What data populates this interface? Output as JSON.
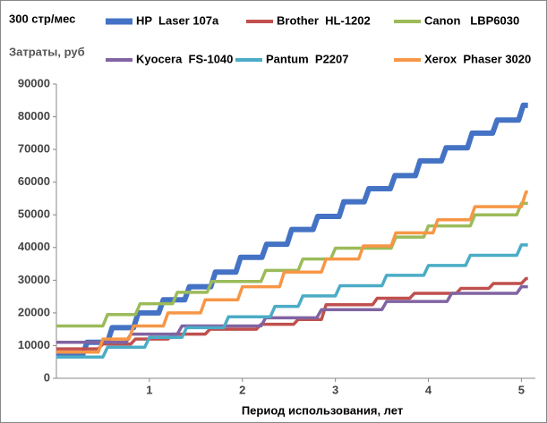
{
  "chart_data": {
    "type": "line",
    "annotation": "300 стр/мес",
    "y_label": "Затраты, руб",
    "x_label": "Период использования, лет",
    "xlim": [
      0,
      5.15
    ],
    "xticks": [
      1,
      2,
      3,
      4,
      5
    ],
    "ylim": [
      0,
      90000
    ],
    "yticks": [
      0,
      10000,
      20000,
      30000,
      40000,
      50000,
      60000,
      70000,
      80000,
      90000
    ],
    "grid": false,
    "legend": "top",
    "series": [
      {
        "name": "HP  Laser 107a",
        "color": "#4472c4",
        "x": [
          0,
          0.28,
          0.33,
          0.55,
          0.6,
          0.83,
          0.88,
          1.1,
          1.15,
          1.38,
          1.43,
          1.66,
          1.71,
          1.93,
          1.98,
          2.21,
          2.26,
          2.48,
          2.53,
          2.76,
          2.81,
          3.04,
          3.09,
          3.31,
          3.36,
          3.59,
          3.64,
          3.86,
          3.91,
          4.14,
          4.19,
          4.42,
          4.47,
          4.69,
          4.74,
          4.97,
          5.02,
          5.07
        ],
        "values": [
          7000,
          7000,
          11000,
          11000,
          15500,
          15500,
          20000,
          20000,
          24000,
          24000,
          28000,
          28000,
          32500,
          32500,
          37000,
          37000,
          41000,
          41000,
          45500,
          45500,
          49500,
          49500,
          54000,
          54000,
          58000,
          58000,
          62000,
          62000,
          66500,
          66500,
          70500,
          70500,
          75000,
          75000,
          79000,
          79000,
          83500,
          83500
        ]
      },
      {
        "name": "Brother  HL-1202",
        "color": "#c0504d",
        "x": [
          0,
          0.45,
          0.5,
          0.8,
          0.85,
          1.2,
          1.25,
          1.6,
          1.65,
          2.15,
          2.2,
          2.55,
          2.6,
          2.85,
          2.9,
          3.4,
          3.45,
          3.8,
          3.85,
          4.3,
          4.35,
          4.65,
          4.7,
          5.0,
          5.05,
          5.07
        ],
        "values": [
          9000,
          9000,
          10500,
          10500,
          12000,
          12000,
          13500,
          13500,
          15000,
          15000,
          16500,
          16500,
          18000,
          18000,
          22500,
          22500,
          24500,
          24500,
          26000,
          26000,
          27500,
          27500,
          29000,
          29000,
          30500,
          30500
        ]
      },
      {
        "name": "Canon   LBP6030",
        "color": "#9bbb59",
        "x": [
          0,
          0.5,
          0.55,
          0.85,
          0.9,
          1.25,
          1.3,
          1.62,
          1.67,
          2.2,
          2.25,
          2.6,
          2.65,
          2.95,
          3.0,
          3.6,
          3.65,
          3.95,
          4.0,
          4.45,
          4.5,
          4.95,
          5.0,
          5.07
        ],
        "values": [
          16000,
          16000,
          19500,
          19500,
          22800,
          22800,
          26300,
          26300,
          29600,
          29600,
          33000,
          33000,
          36500,
          36500,
          39800,
          39800,
          43200,
          43200,
          46600,
          46600,
          50000,
          50000,
          53500,
          53500
        ]
      },
      {
        "name": "Kyocera  FS-1040",
        "color": "#8064a2",
        "x": [
          0,
          0.75,
          0.8,
          1.3,
          1.35,
          2.2,
          2.25,
          2.8,
          2.85,
          3.5,
          3.55,
          4.2,
          4.25,
          4.95,
          5.0,
          5.07
        ],
        "values": [
          11000,
          11000,
          13500,
          13500,
          16000,
          16000,
          18500,
          18500,
          21000,
          21000,
          23500,
          23500,
          26000,
          26000,
          28000,
          28000
        ]
      },
      {
        "name": "Pantum  P2207",
        "color": "#4bacc6",
        "x": [
          0,
          0.5,
          0.55,
          0.95,
          1.0,
          1.35,
          1.4,
          1.8,
          1.85,
          2.3,
          2.35,
          2.6,
          2.65,
          3.0,
          3.05,
          3.5,
          3.55,
          3.95,
          4.0,
          4.4,
          4.45,
          4.95,
          5.0,
          5.07
        ],
        "values": [
          6500,
          6500,
          9500,
          9500,
          12500,
          12500,
          15500,
          15500,
          18800,
          18800,
          22000,
          22000,
          25200,
          25200,
          28300,
          28300,
          31500,
          31500,
          34500,
          34500,
          37600,
          37600,
          40800,
          40800
        ]
      },
      {
        "name": "Xerox  Phaser 3020",
        "color": "#f79646",
        "x": [
          0,
          0.45,
          0.5,
          0.78,
          0.83,
          1.15,
          1.2,
          1.55,
          1.6,
          1.95,
          2.0,
          2.4,
          2.45,
          2.85,
          2.9,
          3.25,
          3.3,
          3.6,
          3.65,
          4.05,
          4.1,
          4.45,
          4.5,
          5.0,
          5.05,
          5.07
        ],
        "values": [
          8000,
          8000,
          12000,
          12000,
          16000,
          16000,
          20000,
          20000,
          24000,
          24000,
          28000,
          28000,
          32500,
          32500,
          36500,
          36500,
          40500,
          40500,
          44500,
          44500,
          48500,
          48500,
          52500,
          52500,
          57000,
          57000
        ]
      }
    ]
  }
}
